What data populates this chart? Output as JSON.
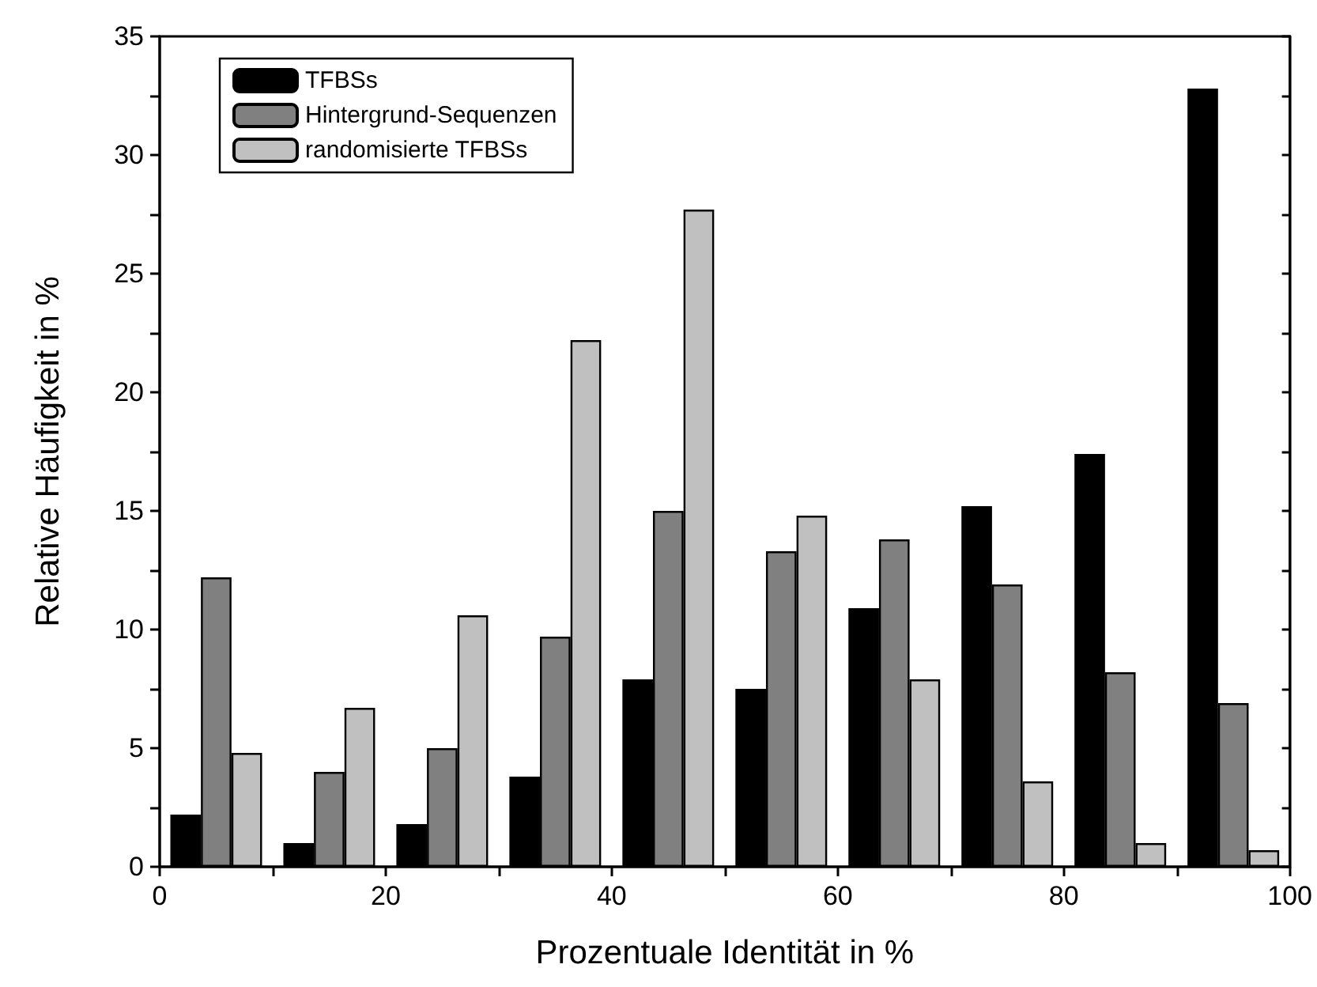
{
  "chart_data": {
    "type": "bar",
    "xlabel": "Prozentuale Identität in %",
    "ylabel": "Relative Häufigkeit in %",
    "x": [
      5,
      15,
      25,
      35,
      45,
      55,
      65,
      75,
      85,
      95
    ],
    "series": [
      {
        "name": "TFBSs",
        "color": "#000000",
        "values": [
          2.2,
          1.0,
          1.8,
          3.8,
          7.9,
          7.5,
          10.9,
          15.2,
          17.4,
          32.8
        ]
      },
      {
        "name": "Hintergrund-Sequenzen",
        "color": "#808080",
        "values": [
          12.2,
          4.0,
          5.0,
          9.7,
          15.0,
          13.3,
          13.8,
          11.9,
          8.2,
          6.9
        ]
      },
      {
        "name": "randomisierte TFBSs",
        "color": "#c0c0c0",
        "values": [
          4.8,
          6.7,
          10.6,
          22.2,
          27.7,
          14.8,
          7.9,
          3.6,
          1.0,
          0.7
        ]
      }
    ],
    "xlim": [
      0,
      100
    ],
    "xticks": [
      0,
      {
        "value": 10,
        "label": null
      },
      20,
      {
        "value": 30,
        "label": null
      },
      40,
      {
        "value": 50,
        "label": null
      },
      60,
      {
        "value": 70,
        "label": null
      },
      80,
      {
        "value": 90,
        "label": null
      },
      100
    ],
    "ylim": [
      0,
      35
    ],
    "yticks": [
      0,
      {
        "value": 2.5,
        "label": null
      },
      5,
      {
        "value": 7.5,
        "label": null
      },
      10,
      {
        "value": 12.5,
        "label": null
      },
      15,
      {
        "value": 17.5,
        "label": null
      },
      20,
      {
        "value": 22.5,
        "label": null
      },
      25,
      {
        "value": 27.5,
        "label": null
      },
      30,
      {
        "value": 32.5,
        "label": null
      },
      35
    ],
    "grid": false,
    "legend": "top left"
  }
}
